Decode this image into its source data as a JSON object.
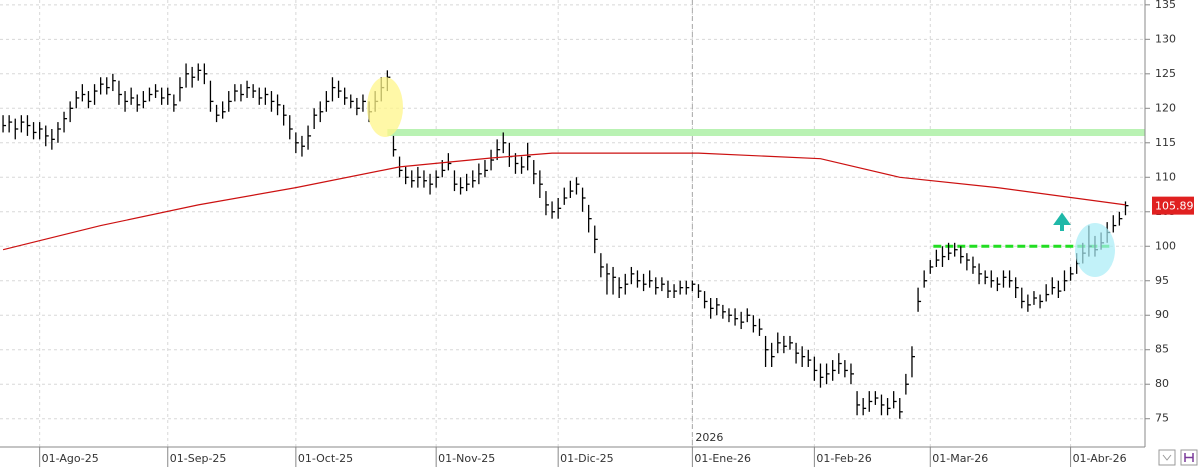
{
  "chart_data": {
    "type": "ohlc",
    "bar_color": "#000000",
    "grid": true,
    "xlim": [
      -0.5,
      187.2
    ],
    "ylim": [
      70.9,
      135.7
    ],
    "yticks": [
      75,
      80,
      85,
      90,
      95,
      100,
      105,
      110,
      115,
      120,
      125,
      130,
      135
    ],
    "xticks": [
      {
        "value": 6,
        "label": "01-Ago-25"
      },
      {
        "value": 27,
        "label": "01-Sep-25"
      },
      {
        "value": 48,
        "label": "01-Oct-25"
      },
      {
        "value": 71,
        "label": "01-Nov-25"
      },
      {
        "value": 91,
        "label": "01-Dic-25"
      },
      {
        "value": 113,
        "label": "01-Ene-26"
      },
      {
        "value": 133,
        "label": "01-Feb-26"
      },
      {
        "value": 152,
        "label": "01-Mar-26"
      },
      {
        "value": 175,
        "label": "01-Abr-26"
      }
    ],
    "year_divider": {
      "x": 113,
      "label": "2026"
    },
    "high": [
      119,
      119,
      118.5,
      119,
      119,
      118,
      118,
      117.5,
      117,
      118,
      119.5,
      121,
      122.5,
      123.5,
      122.5,
      123.5,
      124.5,
      124.5,
      125,
      124,
      122.5,
      123,
      122,
      122.5,
      123,
      123.5,
      123,
      123,
      122,
      124.5,
      126.5,
      126,
      126.5,
      126.5,
      124,
      120.5,
      121,
      122.5,
      123.5,
      123.5,
      124,
      123.5,
      123,
      123,
      122.5,
      122,
      120.5,
      119,
      116.5,
      116,
      117.5,
      120,
      121,
      122.5,
      124.5,
      124,
      123,
      122,
      121.5,
      122,
      121,
      122.5,
      124.5,
      125.5,
      116,
      113,
      111.5,
      111,
      111.5,
      111,
      110.5,
      111,
      112.5,
      113.5,
      111,
      110,
      110.5,
      111,
      112,
      112.5,
      114,
      115.5,
      116.5,
      115,
      113.5,
      113,
      115,
      112.5,
      111,
      108,
      106.5,
      107,
      108.5,
      109.5,
      110,
      108.5,
      106,
      103,
      99,
      97.5,
      97,
      95.5,
      96,
      97,
      96.5,
      96,
      96.5,
      95.5,
      95.5,
      95,
      94.5,
      95,
      95,
      95,
      94.5,
      93.5,
      92.5,
      92.5,
      91.5,
      91,
      91,
      90.5,
      91,
      90,
      89.5,
      87,
      86,
      87.5,
      87,
      87,
      86,
      85.5,
      85,
      84,
      83,
      83,
      83.5,
      84.5,
      83.5,
      83,
      79,
      78,
      79,
      79,
      78.5,
      78,
      79,
      78,
      81.5,
      85.5,
      94,
      96.5,
      98,
      99.5,
      100,
      100.5,
      100.5,
      100,
      99,
      98.5,
      97.5,
      96.5,
      96.5,
      95.5,
      96.5,
      96.5,
      95.5,
      94,
      93,
      93.5,
      93,
      94.5,
      95.5,
      95,
      96.5,
      97,
      99,
      100.5,
      103,
      101.5,
      102,
      103.5,
      104.5,
      105,
      106.5
    ],
    "low": [
      116.5,
      116.5,
      115.5,
      116.5,
      116,
      115.5,
      115.5,
      114.5,
      114,
      115,
      116.5,
      118,
      120,
      121,
      120,
      120.5,
      122,
      122,
      122.5,
      120.5,
      119.5,
      120.5,
      119.5,
      120,
      121,
      121.5,
      120.5,
      120.5,
      119.5,
      121,
      123,
      123,
      124,
      123.5,
      119.5,
      118,
      118.5,
      119.5,
      121,
      121,
      121.5,
      121.5,
      120.5,
      120.5,
      119.5,
      119,
      117.5,
      115.5,
      113.5,
      113,
      114,
      117,
      118,
      119.5,
      121,
      121.5,
      120.5,
      120,
      119,
      119.5,
      118,
      119.5,
      121,
      122.5,
      113,
      110,
      109,
      108.5,
      108.5,
      108.5,
      107.5,
      108.5,
      110,
      111,
      108,
      107.5,
      108,
      108.5,
      109,
      110,
      111,
      112.5,
      113.5,
      111.5,
      110.5,
      110.5,
      111,
      109,
      107,
      104.5,
      104,
      104,
      106,
      107,
      107.5,
      105,
      102,
      99,
      95.5,
      93,
      93,
      92.5,
      93,
      94.5,
      94,
      93.5,
      94,
      93,
      93.5,
      92.5,
      92.5,
      93,
      93,
      93.5,
      92.5,
      91,
      89.5,
      90,
      89.5,
      89,
      88.5,
      88,
      89,
      87.5,
      87,
      82.5,
      82.5,
      84.5,
      84.5,
      85,
      83,
      82.5,
      82.5,
      80.5,
      79.5,
      80,
      80.5,
      81.5,
      81,
      80,
      75.5,
      75.5,
      76,
      77,
      75.5,
      75.5,
      76.5,
      75,
      78.5,
      81,
      90.5,
      94,
      96,
      97,
      97,
      98,
      98.5,
      97.5,
      96.5,
      96,
      94.5,
      94.5,
      94,
      93.5,
      94,
      94,
      92.5,
      91,
      90.5,
      91.5,
      91,
      92,
      93,
      92.5,
      93.5,
      95,
      96,
      97.5,
      98.5,
      98.5,
      99.5,
      100.5,
      102,
      103,
      104.5
    ],
    "close": [
      117.5,
      118,
      117,
      118,
      117.5,
      116.5,
      117,
      116,
      115.5,
      117,
      118.5,
      120,
      121.5,
      122,
      121,
      122.5,
      123.5,
      123,
      124,
      122,
      121,
      121.5,
      120.5,
      121,
      122,
      122.5,
      121.5,
      122,
      120.5,
      123,
      125,
      124.5,
      125.5,
      125,
      121,
      119,
      119.5,
      121,
      122.5,
      122,
      123,
      122.5,
      121.5,
      122,
      121,
      120.5,
      119,
      117,
      115,
      114.5,
      116,
      119,
      119.5,
      121,
      123,
      122.5,
      121.5,
      121,
      120,
      121,
      119.5,
      121,
      123,
      124.5,
      114,
      111,
      110,
      109.5,
      110,
      109.5,
      109,
      110,
      111,
      112,
      109,
      108.5,
      109,
      109.5,
      110.5,
      111,
      112.5,
      114,
      115,
      113,
      112,
      111.5,
      113,
      110.5,
      109,
      106,
      105,
      105.5,
      107,
      108,
      109,
      107,
      104,
      101,
      97,
      96,
      95.5,
      94,
      94.5,
      96,
      95,
      94.5,
      95,
      94,
      94.5,
      93.5,
      93.5,
      94,
      94,
      94.5,
      93.5,
      92,
      91,
      91.5,
      90.5,
      90,
      89.5,
      89,
      90,
      88.5,
      88,
      85,
      84,
      86,
      85.5,
      86,
      84.5,
      84,
      83.5,
      82,
      81,
      81.5,
      82,
      83,
      82,
      81.5,
      77,
      76.5,
      77.5,
      78,
      77,
      76.5,
      77.5,
      76,
      80,
      84,
      92,
      95,
      97,
      98,
      98.5,
      99,
      99.5,
      98.5,
      98,
      97,
      96,
      95.5,
      95,
      94.5,
      95.5,
      95,
      94,
      92,
      91.5,
      92.5,
      92,
      93,
      94,
      93.5,
      95,
      96,
      97.5,
      99,
      100,
      99.5,
      100.5,
      102,
      103,
      104,
      105.89
    ],
    "last_price_color": "#e02020",
    "moving_average": {
      "color": "#cc1111",
      "x": [
        0,
        16,
        32,
        48,
        65,
        80,
        90,
        114,
        134,
        147,
        163,
        184
      ],
      "values": [
        99.5,
        103,
        106,
        108.5,
        111.5,
        112.8,
        113.5,
        113.5,
        112.7,
        110,
        108.5,
        106
      ]
    },
    "levels": [
      {
        "value": 116.5,
        "from": 63,
        "to": 187.2,
        "color": "#b9f2b3",
        "dashed": false
      },
      {
        "value": 100,
        "from": 152.5,
        "to": 182,
        "color": "#22dd22",
        "dashed": true
      }
    ]
  }
}
